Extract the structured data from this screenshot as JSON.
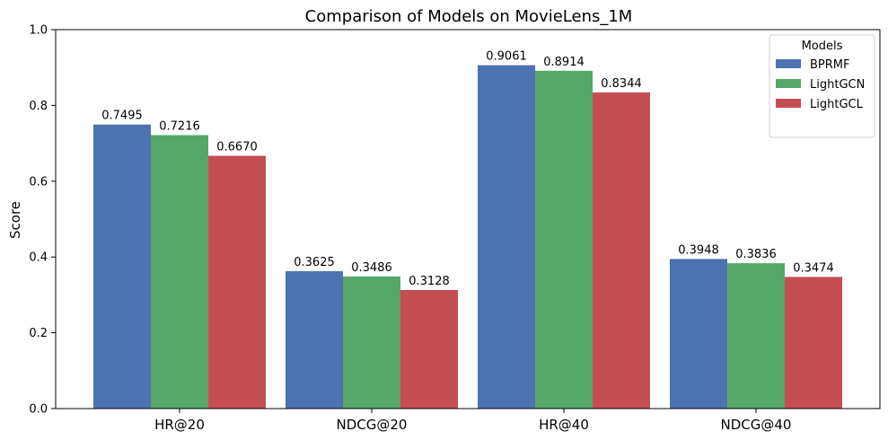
{
  "chart_data": {
    "type": "bar",
    "title": "Comparison of Models on MovieLens_1M",
    "xlabel": "",
    "ylabel": "Score",
    "ylim": [
      0,
      1.0
    ],
    "yticks": [
      "0.0",
      "0.2",
      "0.4",
      "0.6",
      "0.8",
      "1.0"
    ],
    "categories": [
      "HR@20",
      "NDCG@20",
      "HR@40",
      "NDCG@40"
    ],
    "series": [
      {
        "name": "BPRMF",
        "color": "#4c72b0",
        "values": [
          0.7495,
          0.3625,
          0.9061,
          0.3948
        ],
        "labels": [
          "0.7495",
          "0.3625",
          "0.9061",
          "0.3948"
        ]
      },
      {
        "name": "LightGCN",
        "color": "#55a868",
        "values": [
          0.7216,
          0.3486,
          0.8914,
          0.3836
        ],
        "labels": [
          "0.7216",
          "0.3486",
          "0.8914",
          "0.3836"
        ]
      },
      {
        "name": "LightGCL",
        "color": "#c44e52",
        "values": [
          0.667,
          0.3128,
          0.8344,
          0.3474
        ],
        "labels": [
          "0.6670",
          "0.3128",
          "0.8344",
          "0.3474"
        ]
      }
    ],
    "legend": {
      "title": "Models",
      "placement": "top-right"
    },
    "grid": false
  }
}
